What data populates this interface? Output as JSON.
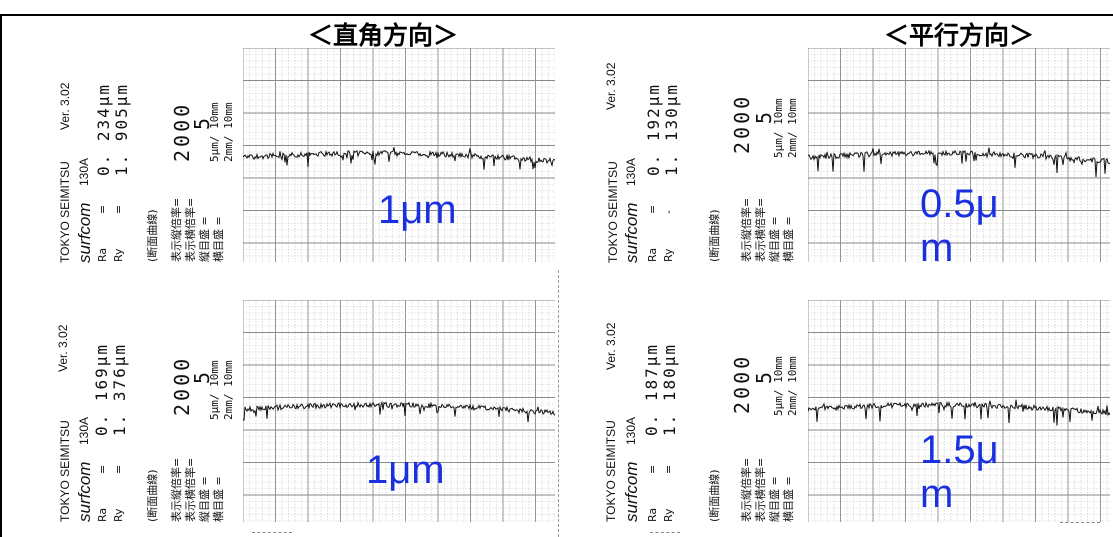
{
  "titles": {
    "perpendicular": "＜直角方向＞",
    "parallel": "＜平行方向＞"
  },
  "cards": [
    {
      "instrument": "TOKYO SEIMITSU",
      "version": "Ver. 3.02",
      "model": "surfcom",
      "model_no": "130A",
      "ra_label": "Ra",
      "ry_label": "Ry",
      "eq1": "=",
      "eq2": "=",
      "ra_value": "0. 234μm",
      "ry_value": "1. 905μm",
      "curve_label": "(断面曲線)",
      "v_mag_label": "表示縦倍率=",
      "h_mag_label": "表示横倍率=",
      "v_scale_label": "縦目盛  =",
      "h_scale_label": "横目盛  =",
      "v_mag": "2000",
      "h_mag": "5",
      "v_scale": "5μm/ 10mm",
      "h_scale": "2mm/ 10mm",
      "annotation": "1μm"
    },
    {
      "instrument": "TOKYO SEIMITSU",
      "version": "Ver. 3.02",
      "model": "surfcom",
      "model_no": "130A",
      "ra_label": "Ra",
      "ry_label": "Ry",
      "eq1": "=",
      "eq2": "-",
      "ra_value": "0. 192μm",
      "ry_value": "1. 130μm",
      "curve_label": "(断面曲線)",
      "v_mag_label": "表示縦倍率=",
      "h_mag_label": "表示横倍率=",
      "v_scale_label": "縦目盛  =",
      "h_scale_label": "横目盛  =",
      "v_mag": "2000",
      "h_mag": "5",
      "v_scale": "5μm/ 10mm",
      "h_scale": "2mm/ 10mm",
      "annotation": "0.5μ\nm"
    },
    {
      "instrument": "TOKYO SEIMITSU",
      "version": "Ver. 3.02",
      "model": "surfcom",
      "model_no": "130A",
      "ra_label": "Ra",
      "ry_label": "Ry",
      "eq1": "=",
      "eq2": "=",
      "ra_value": "0. 169μm",
      "ry_value": "1. 376μm",
      "curve_label": "(断面曲線)",
      "v_mag_label": "表示縦倍率=",
      "h_mag_label": "表示横倍率=",
      "v_scale_label": "縦目盛  =",
      "h_scale_label": "横目盛  =",
      "v_mag": "2000",
      "h_mag": "5",
      "v_scale": "5μm/ 10mm",
      "h_scale": "2mm/ 10mm",
      "annotation": "1μm"
    },
    {
      "instrument": "TOKYO SEIMITSU",
      "version": "Ver. 3.02",
      "model": "surfcom",
      "model_no": "130A",
      "ra_label": "Ra",
      "ry_label": "Ry",
      "eq1": "=",
      "eq2": "=",
      "ra_value": "0. 187μm",
      "ry_value": "1. 180μm",
      "curve_label": "(断面曲線)",
      "v_mag_label": "表示縦倍率=",
      "h_mag_label": "表示横倍率=",
      "v_scale_label": "縦目盛  =",
      "h_scale_label": "横目盛  =",
      "v_mag": "2000",
      "h_mag": "5",
      "v_scale": "5μm/ 10mm",
      "h_scale": "2mm/ 10mm",
      "annotation": "1.5μ\nm"
    }
  ],
  "colors": {
    "annotation": "#1a2fe0",
    "grid_minor": "#c8c8c8",
    "grid_major": "#8a8a8a",
    "trace": "#111111"
  }
}
